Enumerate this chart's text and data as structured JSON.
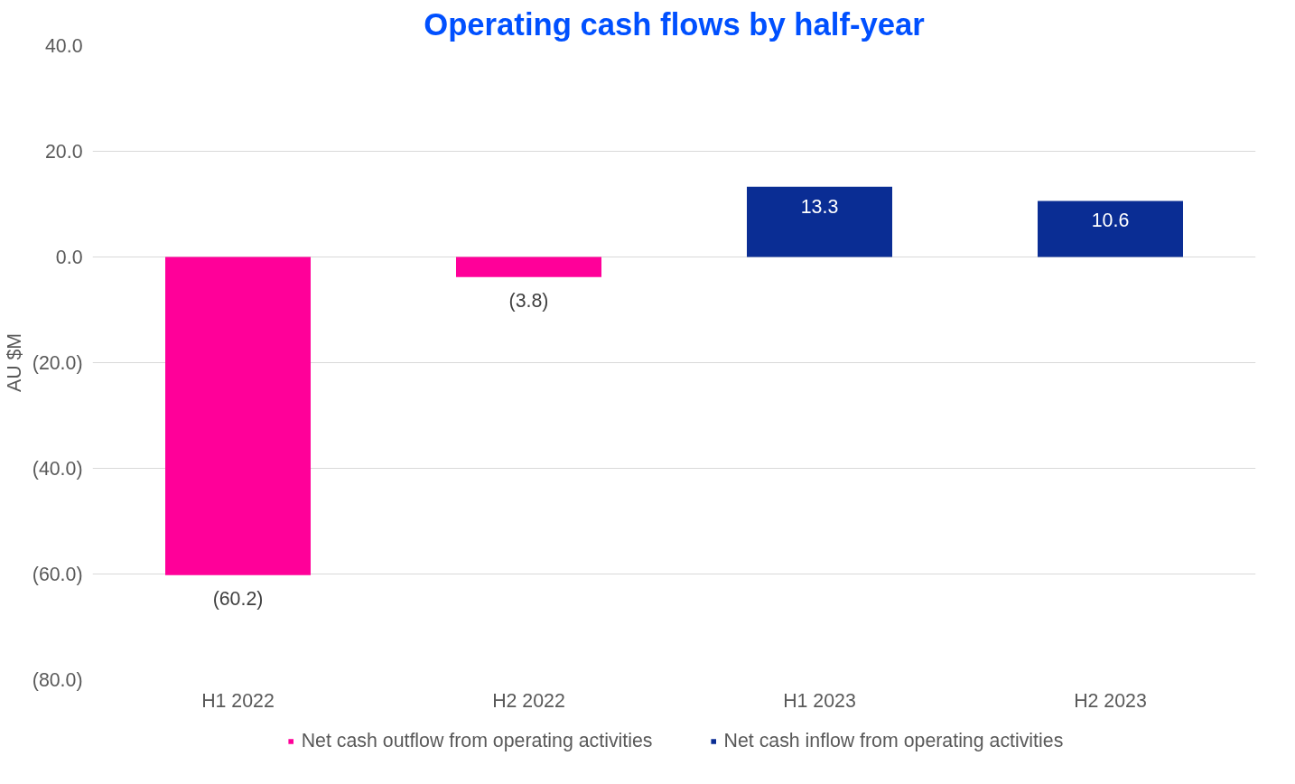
{
  "chart_data": {
    "type": "bar",
    "title": "Operating cash flows by half-year",
    "ylabel": "AU $M",
    "categories": [
      "H1 2022",
      "H2 2022",
      "H1 2023",
      "H2 2023"
    ],
    "series": [
      {
        "name": "Net cash outflow from operating activities",
        "color": "#ff0099",
        "values": [
          -60.2,
          -3.8,
          null,
          null
        ],
        "value_labels": [
          "(60.2)",
          "(3.8)",
          null,
          null
        ]
      },
      {
        "name": "Net cash inflow from operating activities",
        "color": "#0a2d94",
        "values": [
          null,
          null,
          13.3,
          10.6
        ],
        "value_labels": [
          null,
          null,
          "13.3",
          "10.6"
        ]
      }
    ],
    "ylim": [
      -80,
      40
    ],
    "yticks": [
      {
        "value": -80,
        "label": "(80.0)"
      },
      {
        "value": -60,
        "label": "(60.0)"
      },
      {
        "value": -40,
        "label": "(40.0)"
      },
      {
        "value": -20,
        "label": "(20.0)"
      },
      {
        "value": 0,
        "label": "0.0"
      },
      {
        "value": 20,
        "label": "20.0"
      },
      {
        "value": 40,
        "label": "40.0"
      }
    ],
    "grid": "y",
    "legend": "bottom"
  }
}
